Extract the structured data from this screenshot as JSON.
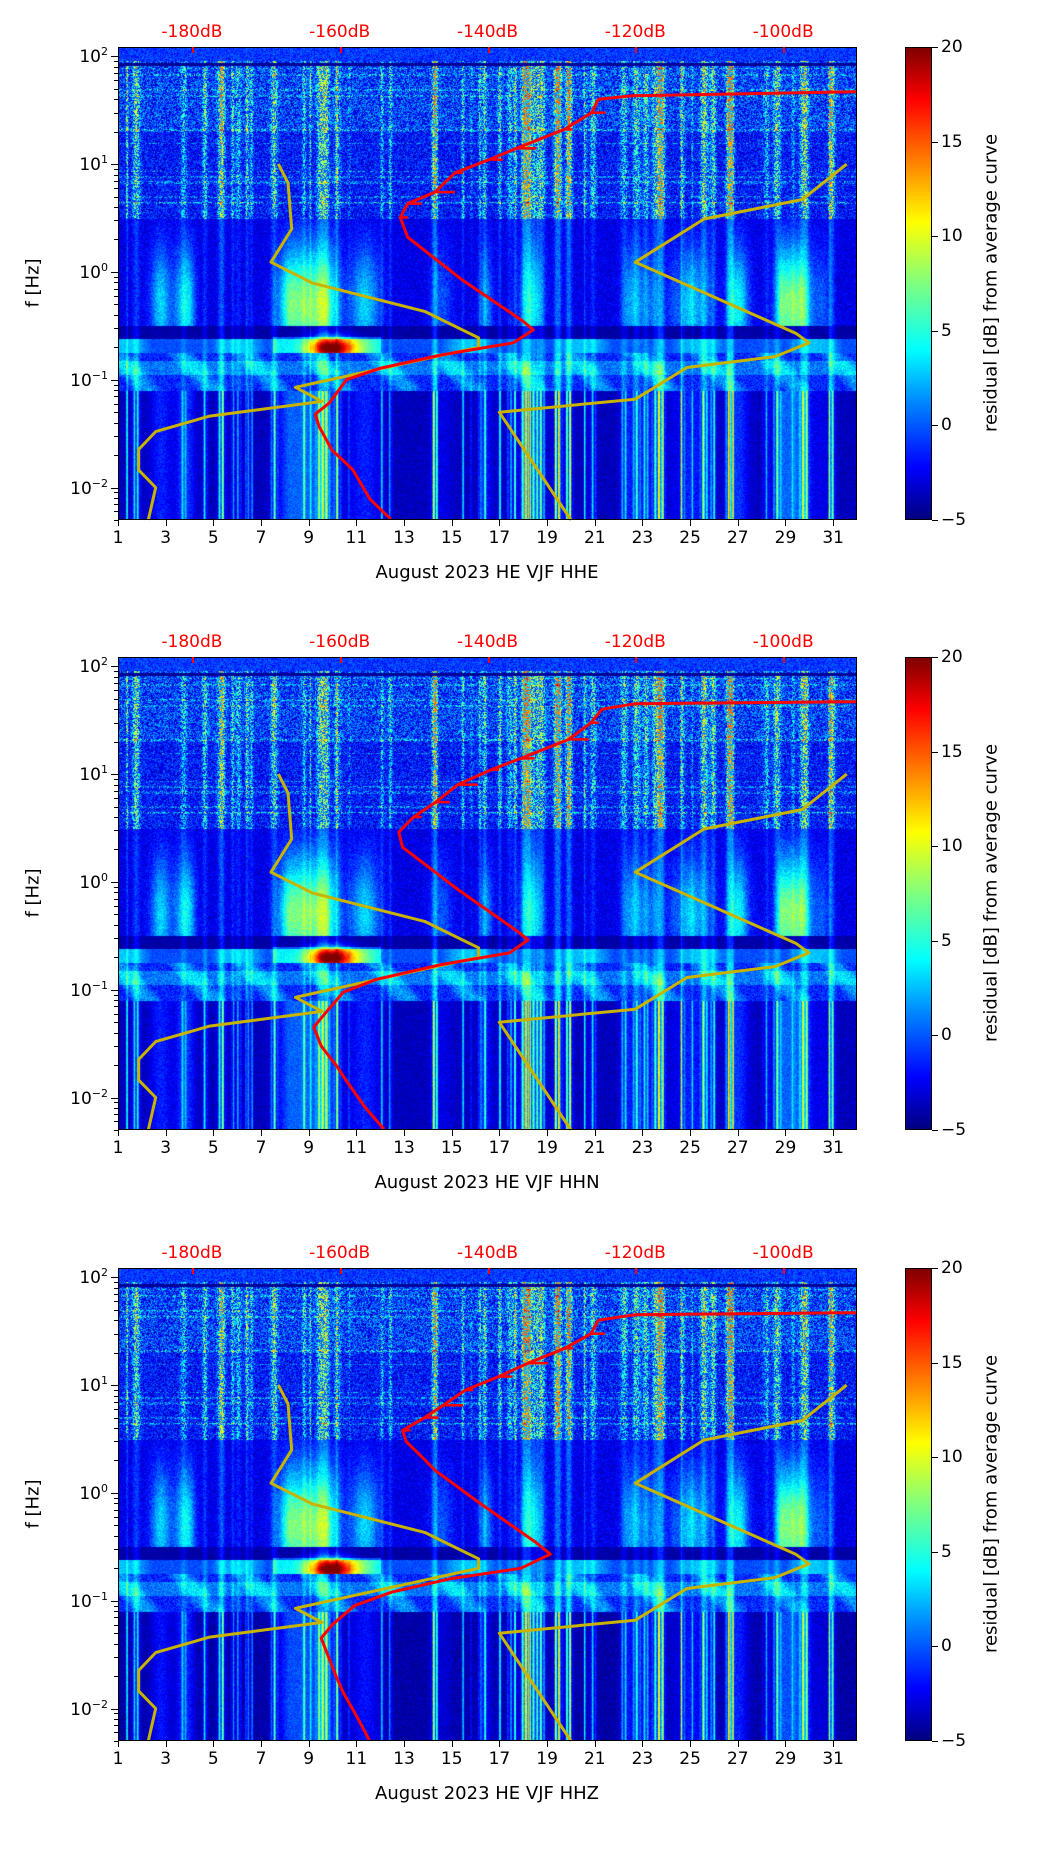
{
  "chart_data": [
    {
      "type": "heatmap",
      "xlabel": "August 2023 HE VJF  HHE",
      "ylabel": "f [Hz]",
      "xlim": [
        1,
        32
      ],
      "x_ticks": [
        "1",
        "3",
        "5",
        "7",
        "9",
        "11",
        "13",
        "15",
        "17",
        "19",
        "21",
        "23",
        "25",
        "27",
        "29",
        "31"
      ],
      "y_scale": "log",
      "ylim": [
        0.005,
        122
      ],
      "y_ticks": [
        {
          "base": "10",
          "exp": "2",
          "value": 100
        },
        {
          "base": "10",
          "exp": "1",
          "value": 10
        },
        {
          "base": "10",
          "exp": "0",
          "value": 1
        },
        {
          "base": "10",
          "exp": "−1",
          "value": 0.1
        },
        {
          "base": "10",
          "exp": "−2",
          "value": 0.01
        }
      ],
      "top_axis": {
        "range_db": [
          -190,
          -90
        ],
        "values": [
          -180,
          -160,
          -140,
          -120,
          -100
        ],
        "labels": [
          "-180dB",
          "-160dB",
          "-140dB",
          "-120dB",
          "-100dB"
        ],
        "color": "#ff0000"
      },
      "colorbar": {
        "label": "residual [dB] from average curve",
        "range": [
          -5,
          20
        ],
        "ticks": [
          "20",
          "15",
          "10",
          "5",
          "0",
          "−5"
        ],
        "colormap": "jet"
      },
      "psd_curve": {
        "color": "#ff0000",
        "points_db_hz": [
          [
            -153.1,
            0.0051
          ],
          [
            -155.9,
            0.0078
          ],
          [
            -158.2,
            0.0145
          ],
          [
            -159.6,
            0.018
          ],
          [
            -161.0,
            0.022
          ],
          [
            -162.8,
            0.037
          ],
          [
            -163.3,
            0.048
          ],
          [
            -161.4,
            0.061
          ],
          [
            -159.1,
            0.1
          ],
          [
            -154.5,
            0.128
          ],
          [
            -146.2,
            0.17
          ],
          [
            -136.5,
            0.22
          ],
          [
            -133.8,
            0.29
          ],
          [
            -135.2,
            0.35
          ],
          [
            -143.5,
            0.85
          ],
          [
            -150.8,
            2.1
          ],
          [
            -151.8,
            3.2
          ],
          [
            -150.8,
            4.3
          ],
          [
            -147.1,
            5.5
          ],
          [
            -144.4,
            8.3
          ],
          [
            -139.8,
            11
          ],
          [
            -136.1,
            14
          ],
          [
            -129.6,
            21
          ],
          [
            -125.9,
            30
          ],
          [
            -125.0,
            40
          ],
          [
            -120.4,
            43
          ],
          [
            -90,
            47
          ]
        ]
      },
      "low_noise_model": {
        "color": "#c8b400",
        "points_db_hz": [
          [
            -185.9,
            0.005
          ],
          [
            -184.9,
            0.01
          ],
          [
            -187.2,
            0.0145
          ],
          [
            -187.2,
            0.0226
          ],
          [
            -184.9,
            0.033
          ],
          [
            -177.6,
            0.046
          ],
          [
            -162.4,
            0.063
          ],
          [
            -166.0,
            0.085
          ],
          [
            -141.2,
            0.2
          ],
          [
            -141.2,
            0.245
          ],
          [
            -148.5,
            0.43
          ],
          [
            -163.7,
            0.79
          ],
          [
            -169.3,
            1.23
          ],
          [
            -166.5,
            2.5
          ],
          [
            -167.0,
            6.7
          ],
          [
            -168.3,
            10
          ]
        ]
      },
      "high_noise_model": {
        "color": "#c8b400",
        "points_db_hz": [
          [
            -128.7,
            0.005
          ],
          [
            -138.4,
            0.05
          ],
          [
            -120.0,
            0.066
          ],
          [
            -113.0,
            0.13
          ],
          [
            -101.1,
            0.164
          ],
          [
            -96.5,
            0.22
          ],
          [
            -98.3,
            0.27
          ],
          [
            -120.0,
            1.23
          ],
          [
            -110.7,
            3.1
          ],
          [
            -97.4,
            4.7
          ],
          [
            -91.4,
            10
          ]
        ]
      }
    },
    {
      "type": "heatmap",
      "xlabel": "August 2023 HE VJF  HHN",
      "ylabel": "f [Hz]",
      "xlim": [
        1,
        32
      ],
      "x_ticks": [
        "1",
        "3",
        "5",
        "7",
        "9",
        "11",
        "13",
        "15",
        "17",
        "19",
        "21",
        "23",
        "25",
        "27",
        "29",
        "31"
      ],
      "y_scale": "log",
      "ylim": [
        0.005,
        122
      ],
      "y_ticks": [
        {
          "base": "10",
          "exp": "2",
          "value": 100
        },
        {
          "base": "10",
          "exp": "1",
          "value": 10
        },
        {
          "base": "10",
          "exp": "0",
          "value": 1
        },
        {
          "base": "10",
          "exp": "−1",
          "value": 0.1
        },
        {
          "base": "10",
          "exp": "−2",
          "value": 0.01
        }
      ],
      "top_axis": {
        "range_db": [
          -190,
          -90
        ],
        "values": [
          -180,
          -160,
          -140,
          -120,
          -100
        ],
        "labels": [
          "-180dB",
          "-160dB",
          "-140dB",
          "-120dB",
          "-100dB"
        ],
        "color": "#ff0000"
      },
      "colorbar": {
        "label": "residual [dB] from average curve",
        "range": [
          -5,
          20
        ],
        "ticks": [
          "20",
          "15",
          "10",
          "5",
          "0",
          "−5"
        ],
        "colormap": "jet"
      },
      "psd_curve": {
        "color": "#ff0000",
        "points_db_hz": [
          [
            -154.0,
            0.0051
          ],
          [
            -156.5,
            0.008
          ],
          [
            -159.0,
            0.014
          ],
          [
            -160.5,
            0.02
          ],
          [
            -162.5,
            0.03
          ],
          [
            -163.5,
            0.045
          ],
          [
            -162.0,
            0.06
          ],
          [
            -159.5,
            0.095
          ],
          [
            -155.0,
            0.125
          ],
          [
            -146.5,
            0.17
          ],
          [
            -137.0,
            0.22
          ],
          [
            -134.5,
            0.29
          ],
          [
            -136.0,
            0.35
          ],
          [
            -144.0,
            0.85
          ],
          [
            -151.5,
            2.1
          ],
          [
            -152.0,
            2.9
          ],
          [
            -150.0,
            4.0
          ],
          [
            -147.0,
            5.5
          ],
          [
            -144.0,
            8.0
          ],
          [
            -139.5,
            11
          ],
          [
            -135.5,
            14
          ],
          [
            -129.0,
            21
          ],
          [
            -126.0,
            30
          ],
          [
            -124.5,
            40
          ],
          [
            -120.0,
            45
          ],
          [
            -90,
            47
          ]
        ]
      },
      "low_noise_model": {
        "color": "#c8b400",
        "points_db_hz": [
          [
            -185.9,
            0.005
          ],
          [
            -184.9,
            0.01
          ],
          [
            -187.2,
            0.0145
          ],
          [
            -187.2,
            0.0226
          ],
          [
            -184.9,
            0.033
          ],
          [
            -177.6,
            0.046
          ],
          [
            -162.4,
            0.063
          ],
          [
            -166.0,
            0.085
          ],
          [
            -141.2,
            0.2
          ],
          [
            -141.2,
            0.245
          ],
          [
            -148.5,
            0.43
          ],
          [
            -163.7,
            0.79
          ],
          [
            -169.3,
            1.23
          ],
          [
            -166.5,
            2.5
          ],
          [
            -167.0,
            6.7
          ],
          [
            -168.3,
            10
          ]
        ]
      },
      "high_noise_model": {
        "color": "#c8b400",
        "points_db_hz": [
          [
            -128.7,
            0.005
          ],
          [
            -138.4,
            0.05
          ],
          [
            -120.0,
            0.066
          ],
          [
            -113.0,
            0.13
          ],
          [
            -101.1,
            0.164
          ],
          [
            -96.5,
            0.22
          ],
          [
            -98.3,
            0.27
          ],
          [
            -120.0,
            1.23
          ],
          [
            -110.7,
            3.1
          ],
          [
            -97.4,
            4.7
          ],
          [
            -91.4,
            10
          ]
        ]
      }
    },
    {
      "type": "heatmap",
      "xlabel": "August 2023 HE VJF  HHZ",
      "ylabel": "f [Hz]",
      "xlim": [
        1,
        32
      ],
      "x_ticks": [
        "1",
        "3",
        "5",
        "7",
        "9",
        "11",
        "13",
        "15",
        "17",
        "19",
        "21",
        "23",
        "25",
        "27",
        "29",
        "31"
      ],
      "y_scale": "log",
      "ylim": [
        0.005,
        122
      ],
      "y_ticks": [
        {
          "base": "10",
          "exp": "2",
          "value": 100
        },
        {
          "base": "10",
          "exp": "1",
          "value": 10
        },
        {
          "base": "10",
          "exp": "0",
          "value": 1
        },
        {
          "base": "10",
          "exp": "−1",
          "value": 0.1
        },
        {
          "base": "10",
          "exp": "−2",
          "value": 0.01
        }
      ],
      "top_axis": {
        "range_db": [
          -190,
          -90
        ],
        "values": [
          -180,
          -160,
          -140,
          -120,
          -100
        ],
        "labels": [
          "-180dB",
          "-160dB",
          "-140dB",
          "-120dB",
          "-100dB"
        ],
        "color": "#ff0000"
      },
      "colorbar": {
        "label": "residual [dB] from average curve",
        "range": [
          -5,
          20
        ],
        "ticks": [
          "20",
          "15",
          "10",
          "5",
          "0",
          "−5"
        ],
        "colormap": "jet"
      },
      "psd_curve": {
        "color": "#ff0000",
        "points_db_hz": [
          [
            -156.0,
            0.0051
          ],
          [
            -157.5,
            0.008
          ],
          [
            -159.5,
            0.014
          ],
          [
            -160.5,
            0.02
          ],
          [
            -161.5,
            0.03
          ],
          [
            -162.5,
            0.045
          ],
          [
            -161.0,
            0.06
          ],
          [
            -158.0,
            0.09
          ],
          [
            -153.0,
            0.12
          ],
          [
            -145.0,
            0.16
          ],
          [
            -135.5,
            0.2
          ],
          [
            -131.5,
            0.27
          ],
          [
            -133.5,
            0.35
          ],
          [
            -141.0,
            0.8
          ],
          [
            -147.0,
            1.6
          ],
          [
            -149.0,
            2.2
          ],
          [
            -151.0,
            3.0
          ],
          [
            -151.5,
            3.8
          ],
          [
            -148.5,
            5.0
          ],
          [
            -146.0,
            6.5
          ],
          [
            -143.0,
            9
          ],
          [
            -138.5,
            12
          ],
          [
            -134.5,
            16
          ],
          [
            -129.5,
            22
          ],
          [
            -126.0,
            30
          ],
          [
            -125.0,
            40
          ],
          [
            -120.0,
            45
          ],
          [
            -90,
            47
          ]
        ]
      },
      "low_noise_model": {
        "color": "#c8b400",
        "points_db_hz": [
          [
            -185.9,
            0.005
          ],
          [
            -184.9,
            0.01
          ],
          [
            -187.2,
            0.0145
          ],
          [
            -187.2,
            0.0226
          ],
          [
            -184.9,
            0.033
          ],
          [
            -177.6,
            0.046
          ],
          [
            -162.4,
            0.063
          ],
          [
            -166.0,
            0.085
          ],
          [
            -141.2,
            0.2
          ],
          [
            -141.2,
            0.245
          ],
          [
            -148.5,
            0.43
          ],
          [
            -163.7,
            0.79
          ],
          [
            -169.3,
            1.23
          ],
          [
            -166.5,
            2.5
          ],
          [
            -167.0,
            6.7
          ],
          [
            -168.3,
            10
          ]
        ]
      },
      "high_noise_model": {
        "color": "#c8b400",
        "points_db_hz": [
          [
            -128.7,
            0.005
          ],
          [
            -138.4,
            0.05
          ],
          [
            -120.0,
            0.066
          ],
          [
            -113.0,
            0.13
          ],
          [
            -101.1,
            0.164
          ],
          [
            -96.5,
            0.22
          ],
          [
            -98.3,
            0.27
          ],
          [
            -120.0,
            1.23
          ],
          [
            -110.7,
            3.1
          ],
          [
            -97.4,
            4.7
          ],
          [
            -91.4,
            10
          ]
        ]
      }
    }
  ]
}
